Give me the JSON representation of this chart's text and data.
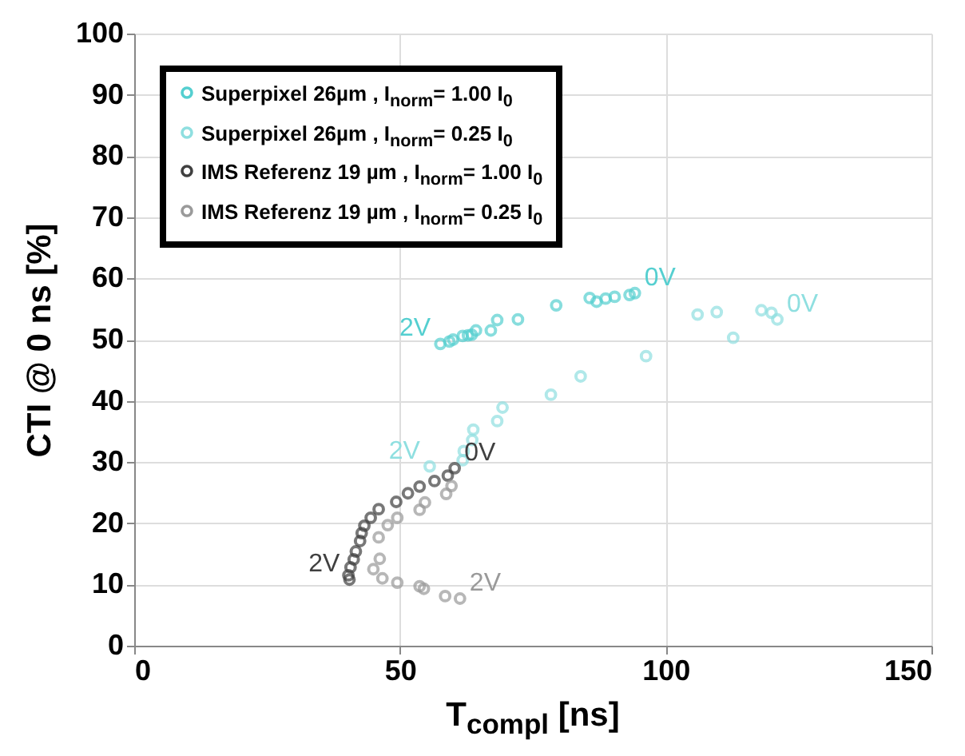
{
  "chart_data": {
    "type": "scatter",
    "xlabel": "T$_{compl}$ [ns]",
    "ylabel": "CTI @ 0 ns [%]",
    "xlim": [
      0,
      150
    ],
    "xticks": [
      0,
      50,
      100,
      150
    ],
    "ylim": [
      0,
      100
    ],
    "yticks": [
      0,
      10,
      20,
      30,
      40,
      50,
      60,
      70,
      80,
      90,
      100
    ],
    "grid": true,
    "legend": "top left",
    "marker": "circle",
    "series": [
      {
        "name": "Superpixel 26µm , I$_{norm}$= 1.00 I$_{0}$",
        "color": "#55cfd0",
        "x": [
          57.6,
          59.3,
          60.0,
          61.8,
          62.8,
          63.5,
          64.3,
          67.1,
          68.3,
          72.2,
          79.4,
          85.7,
          87.0,
          88.7,
          90.4,
          93.2,
          94.2
        ],
        "values": [
          49.3,
          49.7,
          50.0,
          50.6,
          50.7,
          50.8,
          51.5,
          51.5,
          53.2,
          53.3,
          55.6,
          56.8,
          56.2,
          56.7,
          57.0,
          57.3,
          57.6
        ]
      },
      {
        "name": "Superpixel 26µm , I$_{norm}$= 0.25 I$_{0}$",
        "color": "#8fdfe0",
        "x": [
          106.0,
          109.6,
          112.7,
          118.0,
          119.9,
          121.0,
          96.3,
          84.0,
          78.4,
          69.3,
          68.3,
          63.8,
          63.6,
          62.0,
          61.8,
          55.6
        ],
        "values": [
          54.1,
          54.5,
          50.3,
          54.8,
          54.4,
          53.3,
          47.3,
          44.0,
          41.0,
          38.9,
          36.7,
          35.3,
          33.6,
          31.8,
          30.3,
          29.3
        ]
      },
      {
        "name": "IMS Referenz 19 µm , I$_{norm}$= 1.00 I$_{0}$",
        "color": "#404040",
        "x": [
          60.3,
          59.0,
          56.5,
          53.7,
          51.5,
          49.3,
          46.0,
          44.5,
          43.3,
          42.8,
          42.5,
          41.7,
          41.3,
          40.7,
          40.3,
          40.5
        ],
        "values": [
          29.0,
          27.8,
          26.9,
          26.0,
          24.9,
          23.5,
          22.3,
          20.9,
          19.6,
          18.4,
          17.1,
          15.4,
          14.1,
          12.8,
          11.5,
          10.8
        ]
      },
      {
        "name": "IMS Referenz 19 µm , I$_{norm}$= 0.25 I$_{0}$",
        "color": "#9a9a9a",
        "x": [
          59.7,
          58.7,
          54.7,
          53.7,
          49.5,
          47.7,
          46.0,
          46.2,
          45.0,
          46.7,
          49.5,
          53.7,
          54.5,
          58.5,
          61.3
        ],
        "values": [
          26.1,
          24.8,
          23.4,
          22.2,
          20.9,
          19.7,
          17.7,
          14.2,
          12.5,
          11.0,
          10.3,
          9.7,
          9.3,
          8.1,
          7.7
        ]
      }
    ],
    "annotations": [
      {
        "text": "0V",
        "x": 94.2,
        "y": 57.6
      },
      {
        "text": "0V",
        "x": 121.0,
        "y": 53.3
      },
      {
        "text": "2V",
        "x": 57.6,
        "y": 49.3
      },
      {
        "text": "2V",
        "x": 55.6,
        "y": 29.3
      },
      {
        "text": "0V",
        "x": 60.3,
        "y": 29.0
      },
      {
        "text": "2V",
        "x": 40.5,
        "y": 10.8
      },
      {
        "text": "2V",
        "x": 61.3,
        "y": 7.7
      }
    ]
  }
}
